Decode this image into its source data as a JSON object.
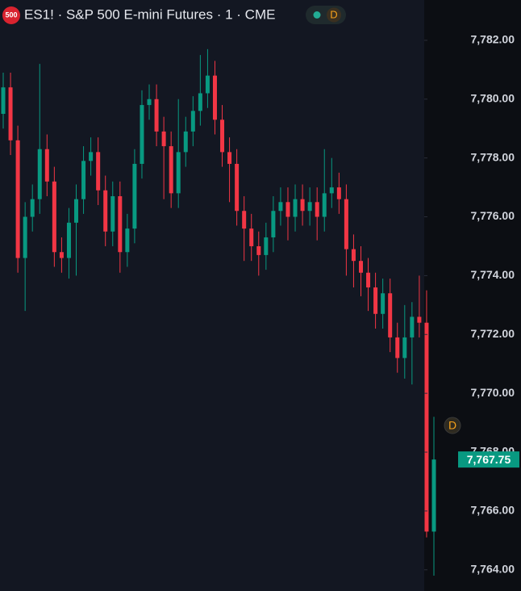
{
  "chart_data": {
    "type": "candlestick",
    "title": "ES1! · S&P 500 E-mini Futures · 1 · CME",
    "symbol_badge": "500",
    "header_badge": "D",
    "event_marker": "D",
    "up_color": "#089981",
    "down_color": "#f23645",
    "open": [
      7779.5,
      7780.4,
      7778.6,
      7774.6,
      7776.0,
      7776.6,
      7778.3,
      7777.2,
      7774.8,
      7774.6,
      7775.8,
      7776.6,
      7777.9,
      7778.2,
      7776.9,
      7775.5,
      7776.7,
      7774.8,
      7775.6,
      7777.8,
      7779.8,
      7780.0,
      7778.9,
      7778.4,
      7776.8,
      7778.2,
      7778.9,
      7779.6,
      7780.2,
      7780.8,
      7779.3,
      7778.2,
      7777.8,
      7776.2,
      7775.6,
      7775.0,
      7774.7,
      7775.3,
      7776.2,
      7776.5,
      7776.0,
      7776.6,
      7776.2,
      7776.5,
      7776.0,
      7776.8,
      7777.0,
      7776.6,
      7774.9,
      7774.5,
      7774.1,
      7773.6,
      7772.7,
      7773.4,
      7771.9,
      7771.2,
      7771.9,
      7772.6,
      7772.4,
      7765.3
    ],
    "high": [
      7780.9,
      7780.9,
      7779.1,
      7776.5,
      7777.1,
      7781.2,
      7778.8,
      7777.7,
      7775.3,
      7776.3,
      7777.1,
      7778.4,
      7778.7,
      7778.7,
      7777.4,
      7777.2,
      7777.2,
      7776.1,
      7778.3,
      7780.3,
      7780.5,
      7780.5,
      7779.4,
      7778.9,
      7780.0,
      7779.4,
      7780.1,
      7781.5,
      7781.7,
      7781.3,
      7779.8,
      7778.7,
      7778.3,
      7776.7,
      7776.1,
      7775.5,
      7775.8,
      7776.7,
      7777.0,
      7777.0,
      7777.1,
      7777.1,
      7777.0,
      7777.0,
      7778.3,
      7778.0,
      7777.5,
      7777.1,
      7775.4,
      7775.0,
      7774.6,
      7774.1,
      7773.9,
      7773.9,
      7772.4,
      7773.0,
      7773.1,
      7774.0,
      7773.5,
      7769.2
    ],
    "low": [
      7779.0,
      7778.1,
      7774.1,
      7772.8,
      7775.5,
      7776.1,
      7776.7,
      7774.3,
      7774.1,
      7773.9,
      7774.0,
      7776.1,
      7777.4,
      7776.4,
      7775.0,
      7775.0,
      7774.1,
      7774.3,
      7775.1,
      7777.3,
      7779.3,
      7778.4,
      7776.6,
      7776.3,
      7776.3,
      7777.7,
      7778.4,
      7779.1,
      7779.7,
      7778.8,
      7777.7,
      7776.5,
      7775.7,
      7774.5,
      7774.5,
      7774.0,
      7774.2,
      7774.8,
      7775.7,
      7775.2,
      7775.5,
      7775.7,
      7775.7,
      7775.2,
      7775.5,
      7776.3,
      7776.1,
      7774.0,
      7773.6,
      7773.3,
      7772.8,
      7772.2,
      7772.2,
      7771.4,
      7770.7,
      7770.5,
      7770.3,
      7771.9,
      7765.1,
      7763.8
    ],
    "close": [
      7780.4,
      7778.6,
      7774.6,
      7776.0,
      7776.6,
      7778.3,
      7777.2,
      7774.8,
      7774.6,
      7775.8,
      7776.6,
      7777.9,
      7778.2,
      7776.9,
      7775.5,
      7776.7,
      7774.8,
      7775.6,
      7777.8,
      7779.8,
      7780.0,
      7778.9,
      7778.4,
      7776.8,
      7778.2,
      7778.9,
      7779.6,
      7780.2,
      7780.8,
      7779.3,
      7778.2,
      7777.8,
      7776.2,
      7775.6,
      7775.0,
      7774.7,
      7775.3,
      7776.2,
      7776.5,
      7776.0,
      7776.6,
      7776.2,
      7776.5,
      7776.0,
      7776.8,
      7777.0,
      7776.6,
      7774.9,
      7774.5,
      7774.1,
      7773.6,
      7772.7,
      7773.4,
      7771.9,
      7771.2,
      7771.9,
      7772.6,
      7772.4,
      7765.3,
      7767.75
    ],
    "ylim": [
      7763.28,
      7783.37
    ],
    "yticks": [
      {
        "value": 7764,
        "label": "7,764.00"
      },
      {
        "value": 7766,
        "label": "7,766.00"
      },
      {
        "value": 7768,
        "label": "7,768.00"
      },
      {
        "value": 7770,
        "label": "7,770.00"
      },
      {
        "value": 7772,
        "label": "7,772.00"
      },
      {
        "value": 7774,
        "label": "7,774.00"
      },
      {
        "value": 7776,
        "label": "7,776.00"
      },
      {
        "value": 7778,
        "label": "7,778.00"
      },
      {
        "value": 7780,
        "label": "7,780.00"
      },
      {
        "value": 7782,
        "label": "7,782.00"
      }
    ],
    "last_price": {
      "value": 7767.75,
      "label": "7,767.75"
    }
  }
}
